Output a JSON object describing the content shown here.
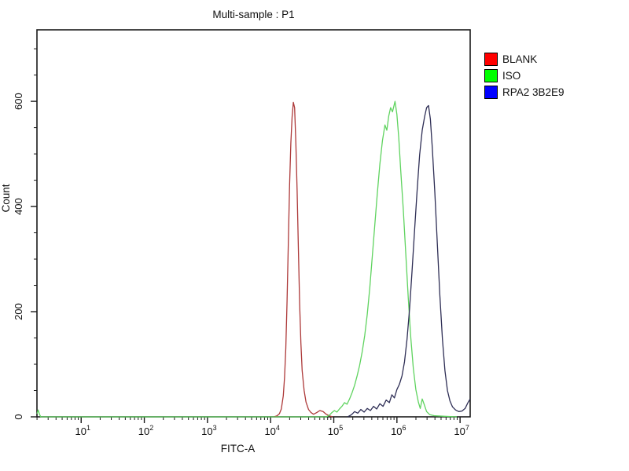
{
  "window": {
    "title": "Multi-sample : P1"
  },
  "legend": {
    "items": [
      {
        "label": "BLANK",
        "color": "#ff0000"
      },
      {
        "label": "ISO",
        "color": "#00ff00"
      },
      {
        "label": "RPA2 3B2E9",
        "color": "#0000ff"
      }
    ]
  },
  "chart_data": {
    "type": "line",
    "subtype": "flow-cytometry-histogram",
    "title": "Multi-sample : P1",
    "xlabel": "FITC-A",
    "ylabel": "Count",
    "x_scale": "log10",
    "xlim_log10": [
      0.3,
      7.16
    ],
    "ylim": [
      0,
      736
    ],
    "x_major_tick_exponents": [
      1,
      2,
      3,
      4,
      5,
      6,
      7
    ],
    "x_major_tick_labels": [
      "10^1",
      "10^2",
      "10^3",
      "10^4",
      "10^5",
      "10^6",
      "10^7"
    ],
    "y_major_ticks": [
      0,
      200,
      400,
      600
    ],
    "y_minor_step": 50,
    "grid": false,
    "legend_position": "right-outside",
    "frame_color": "#1a1a1a",
    "series": [
      {
        "name": "BLANK",
        "line_color": "#ad3939",
        "legend_color": "#ff0000",
        "peak_x_log10": 4.36,
        "peak_count": 598,
        "points": [
          [
            4.05,
            0
          ],
          [
            4.1,
            2
          ],
          [
            4.14,
            6
          ],
          [
            4.17,
            15
          ],
          [
            4.2,
            40
          ],
          [
            4.22,
            75
          ],
          [
            4.24,
            130
          ],
          [
            4.26,
            220
          ],
          [
            4.28,
            330
          ],
          [
            4.3,
            440
          ],
          [
            4.32,
            520
          ],
          [
            4.34,
            570
          ],
          [
            4.36,
            598
          ],
          [
            4.38,
            588
          ],
          [
            4.4,
            520
          ],
          [
            4.42,
            430
          ],
          [
            4.44,
            320
          ],
          [
            4.46,
            215
          ],
          [
            4.48,
            140
          ],
          [
            4.5,
            88
          ],
          [
            4.53,
            50
          ],
          [
            4.56,
            28
          ],
          [
            4.6,
            14
          ],
          [
            4.64,
            8
          ],
          [
            4.68,
            5
          ],
          [
            4.73,
            8
          ],
          [
            4.78,
            12
          ],
          [
            4.83,
            10
          ],
          [
            4.88,
            5
          ],
          [
            4.93,
            2
          ],
          [
            4.98,
            0
          ]
        ]
      },
      {
        "name": "ISO",
        "line_color": "#5fd35f",
        "legend_color": "#00ff00",
        "peak_x_log10": 5.97,
        "peak_count": 600,
        "points": [
          [
            0.3,
            6
          ],
          [
            0.32,
            13
          ],
          [
            0.34,
            5
          ],
          [
            0.36,
            0
          ],
          [
            4.88,
            0
          ],
          [
            4.93,
            3
          ],
          [
            4.97,
            8
          ],
          [
            5.01,
            12
          ],
          [
            5.05,
            9
          ],
          [
            5.09,
            15
          ],
          [
            5.13,
            20
          ],
          [
            5.17,
            27
          ],
          [
            5.21,
            24
          ],
          [
            5.25,
            34
          ],
          [
            5.29,
            46
          ],
          [
            5.33,
            60
          ],
          [
            5.37,
            78
          ],
          [
            5.41,
            98
          ],
          [
            5.45,
            124
          ],
          [
            5.49,
            155
          ],
          [
            5.53,
            195
          ],
          [
            5.57,
            245
          ],
          [
            5.61,
            305
          ],
          [
            5.65,
            365
          ],
          [
            5.69,
            425
          ],
          [
            5.73,
            480
          ],
          [
            5.77,
            525
          ],
          [
            5.81,
            555
          ],
          [
            5.84,
            545
          ],
          [
            5.87,
            572
          ],
          [
            5.9,
            588
          ],
          [
            5.93,
            580
          ],
          [
            5.97,
            600
          ],
          [
            6.0,
            575
          ],
          [
            6.03,
            530
          ],
          [
            6.06,
            470
          ],
          [
            6.1,
            395
          ],
          [
            6.14,
            310
          ],
          [
            6.18,
            225
          ],
          [
            6.22,
            150
          ],
          [
            6.26,
            92
          ],
          [
            6.3,
            52
          ],
          [
            6.34,
            28
          ],
          [
            6.37,
            16
          ],
          [
            6.4,
            34
          ],
          [
            6.43,
            24
          ],
          [
            6.47,
            10
          ],
          [
            6.52,
            4
          ],
          [
            6.6,
            2
          ],
          [
            6.75,
            1
          ],
          [
            6.95,
            0
          ]
        ]
      },
      {
        "name": "RPA2 3B2E9",
        "line_color": "#2e2e55",
        "legend_color": "#0000ff",
        "peak_x_log10": 6.5,
        "peak_count": 592,
        "points": [
          [
            5.22,
            0
          ],
          [
            5.28,
            4
          ],
          [
            5.33,
            10
          ],
          [
            5.38,
            7
          ],
          [
            5.43,
            14
          ],
          [
            5.48,
            9
          ],
          [
            5.53,
            16
          ],
          [
            5.58,
            12
          ],
          [
            5.63,
            20
          ],
          [
            5.68,
            15
          ],
          [
            5.73,
            25
          ],
          [
            5.78,
            20
          ],
          [
            5.83,
            32
          ],
          [
            5.88,
            27
          ],
          [
            5.92,
            42
          ],
          [
            5.96,
            36
          ],
          [
            6.0,
            52
          ],
          [
            6.04,
            62
          ],
          [
            6.08,
            78
          ],
          [
            6.12,
            105
          ],
          [
            6.16,
            148
          ],
          [
            6.2,
            205
          ],
          [
            6.24,
            278
          ],
          [
            6.28,
            355
          ],
          [
            6.32,
            430
          ],
          [
            6.36,
            498
          ],
          [
            6.4,
            545
          ],
          [
            6.44,
            572
          ],
          [
            6.47,
            588
          ],
          [
            6.5,
            592
          ],
          [
            6.53,
            566
          ],
          [
            6.56,
            512
          ],
          [
            6.6,
            428
          ],
          [
            6.64,
            330
          ],
          [
            6.68,
            232
          ],
          [
            6.72,
            148
          ],
          [
            6.76,
            88
          ],
          [
            6.8,
            50
          ],
          [
            6.84,
            30
          ],
          [
            6.88,
            19
          ],
          [
            6.93,
            13
          ],
          [
            6.98,
            10
          ],
          [
            7.03,
            11
          ],
          [
            7.08,
            16
          ],
          [
            7.12,
            26
          ],
          [
            7.16,
            34
          ]
        ]
      }
    ]
  }
}
